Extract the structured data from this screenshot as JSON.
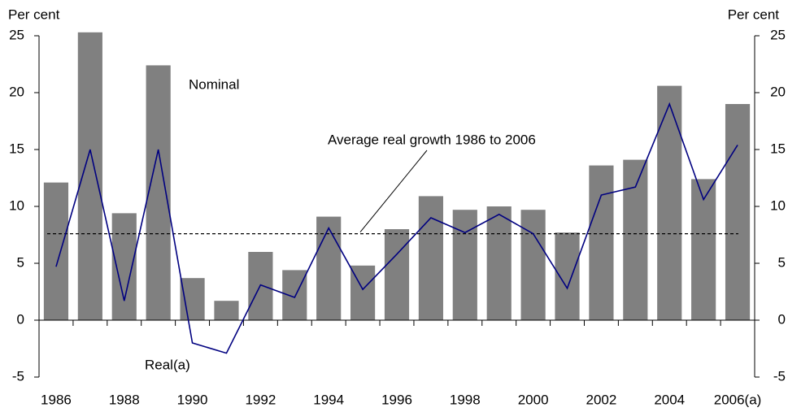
{
  "chart_data": {
    "type": "bar",
    "ylabel": "Per cent",
    "y2label": "Per cent",
    "categories": [
      "1986",
      null,
      "1988",
      null,
      "1990",
      null,
      "1992",
      null,
      "1994",
      null,
      "1996",
      null,
      "1998",
      null,
      "2000",
      null,
      "2002",
      null,
      "2004",
      null,
      "2006(a)"
    ],
    "series": [
      {
        "name": "Nominal",
        "type": "bar",
        "color": "#808080",
        "values": [
          12.1,
          25.3,
          9.4,
          22.4,
          3.7,
          1.7,
          6.0,
          4.4,
          9.1,
          4.8,
          8.0,
          10.9,
          9.7,
          10.0,
          9.7,
          7.7,
          13.6,
          14.1,
          20.6,
          12.4,
          19.0
        ]
      },
      {
        "name": "Real(a)",
        "type": "line",
        "color": "#000080",
        "values": [
          4.7,
          15.0,
          1.7,
          15.0,
          -2.0,
          -2.9,
          3.1,
          2.0,
          8.1,
          2.7,
          5.8,
          9.0,
          7.7,
          9.3,
          7.6,
          2.8,
          11.0,
          11.7,
          19.0,
          10.6,
          15.4
        ]
      }
    ],
    "reference_line": {
      "label": "Average real growth 1986 to 2006",
      "value": 7.6
    },
    "ylim": [
      -5,
      25
    ],
    "yticks": [
      -5,
      0,
      5,
      10,
      15,
      20,
      25
    ],
    "y2lim": [
      -5,
      25
    ],
    "y2ticks": [
      -5,
      0,
      5,
      10,
      15,
      20,
      25
    ],
    "grid": false
  }
}
